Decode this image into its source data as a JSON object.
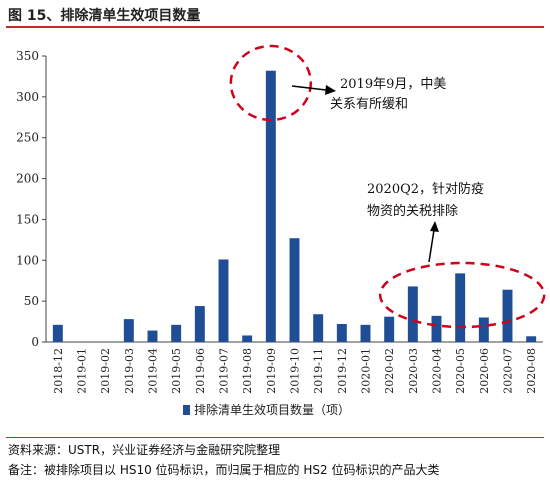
{
  "figure": {
    "title": "图 15、排除清单生效项目数量",
    "source": "资料来源：USTR，兴业证券经济与金融研究院整理",
    "note": "备注：被排除项目以 HS10 位码标识，而归属于相应的 HS2 位码标识的产品大类"
  },
  "chart_data": {
    "type": "bar",
    "categories": [
      "2018-12",
      "2019-01",
      "2019-02",
      "2019-03",
      "2019-04",
      "2019-05",
      "2019-06",
      "2019-07",
      "2019-08",
      "2019-09",
      "2019-10",
      "2019-11",
      "2019-12",
      "2020-01",
      "2020-02",
      "2020-03",
      "2020-04",
      "2020-05",
      "2020-06",
      "2020-07",
      "2020-08"
    ],
    "series": [
      {
        "name": "排除清单生效项目数量（项）",
        "values": [
          21,
          0,
          0,
          28,
          14,
          21,
          44,
          101,
          8,
          332,
          127,
          34,
          22,
          21,
          31,
          68,
          32,
          84,
          30,
          64,
          7
        ]
      }
    ],
    "ylim": [
      0,
      350
    ],
    "yticks": [
      0,
      50,
      100,
      150,
      200,
      250,
      300,
      350
    ],
    "bar_color": "#1f4e96",
    "legend_position": "bottom",
    "annotations": [
      {
        "text_lines": [
          "2019年9月，中美",
          "关系有所缓和"
        ],
        "target": "2019-09"
      },
      {
        "text_lines": [
          "2020Q2，针对防疫",
          "物资的关税排除"
        ],
        "target": "2020Q2"
      }
    ],
    "highlight_color": "#d0021b"
  }
}
